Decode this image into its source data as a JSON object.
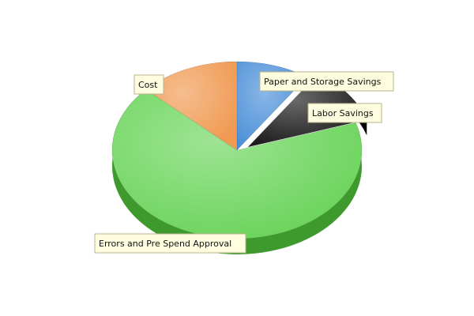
{
  "chart_data": {
    "type": "pie",
    "style": "3d-exploded",
    "legend": "none",
    "slices": [
      {
        "label": "Paper and Storage Savings",
        "value": 9.5,
        "color": "#4a8fd8",
        "side_color": "#2b62a8"
      },
      {
        "label": "Labor Savings",
        "value": 10.5,
        "color": "#1a1a1a",
        "side_color": "#000000"
      },
      {
        "label": "Errors and Pre Spend Approval",
        "value": 67,
        "color": "#6ad45a",
        "side_color": "#3e9a2c"
      },
      {
        "label": "Cost",
        "value": 13,
        "color": "#f09a52",
        "side_color": "#c46a22"
      }
    ]
  }
}
